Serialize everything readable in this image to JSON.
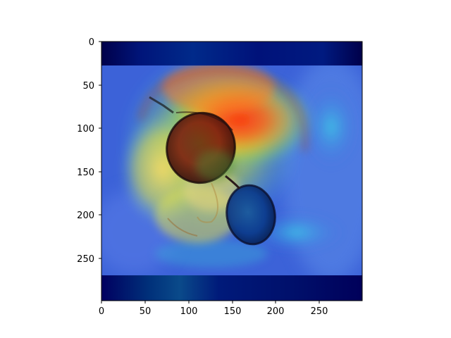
{
  "figure": {
    "image_subject": "heatmap overlay on photo of a person wearing aviator sunglasses",
    "colormap": "jet",
    "xlim": [
      0,
      299
    ],
    "ylim": [
      299,
      0
    ],
    "x_ticks": [
      "0",
      "50",
      "100",
      "150",
      "200",
      "250"
    ],
    "y_ticks": [
      "0",
      "50",
      "100",
      "150",
      "200",
      "250"
    ],
    "colors": {
      "background": "#ffffff",
      "axis": "#000000",
      "band_dark": "#00007a",
      "band_mid": "#0a1a9a"
    }
  }
}
